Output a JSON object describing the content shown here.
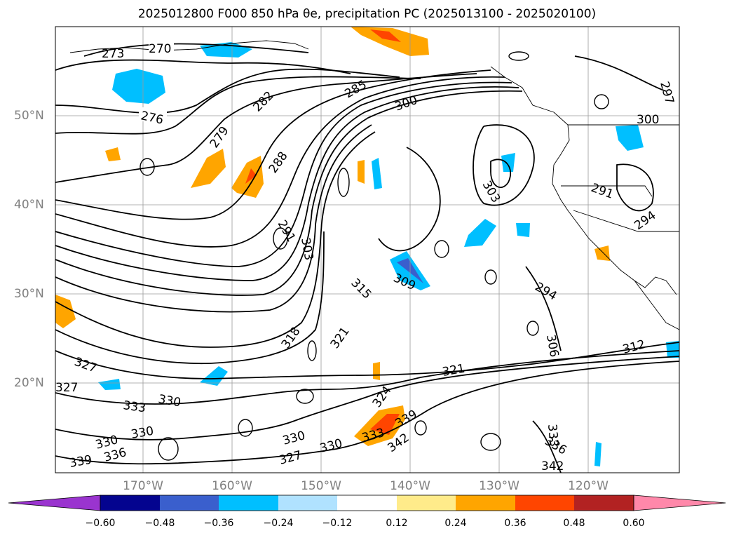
{
  "title": "2025012800 F000 850 hPa θe, precipitation PC (2025013100 - 2025020100)",
  "lat_labels": [
    "50°N",
    "40°N",
    "30°N",
    "20°N"
  ],
  "lon_labels": [
    "170°W",
    "160°W",
    "150°W",
    "140°W",
    "130°W",
    "120°W"
  ],
  "contour_labels": [
    "270",
    "273",
    "276",
    "279",
    "282",
    "285",
    "288",
    "291",
    "294",
    "297",
    "300",
    "303",
    "306",
    "309",
    "312",
    "315",
    "318",
    "321",
    "324",
    "327",
    "330",
    "333",
    "336",
    "339",
    "342"
  ],
  "colorbar": {
    "ticks": [
      "−0.60",
      "−0.48",
      "−0.36",
      "−0.24",
      "−0.12",
      "0.12",
      "0.24",
      "0.36",
      "0.48",
      "0.60"
    ],
    "colors": [
      "#9a34cf",
      "#04048f",
      "#3a5fcd",
      "#00bfff",
      "#b0e2ff",
      "#ffffff",
      "#ffeb8a",
      "#ffa500",
      "#ff4500",
      "#b22222",
      "#ff88aa"
    ]
  },
  "colors": {
    "positive": "#ffa500",
    "negative": "#00bfff",
    "strong_pos": "#ff4500",
    "strong_neg": "#3a5fcd"
  }
}
